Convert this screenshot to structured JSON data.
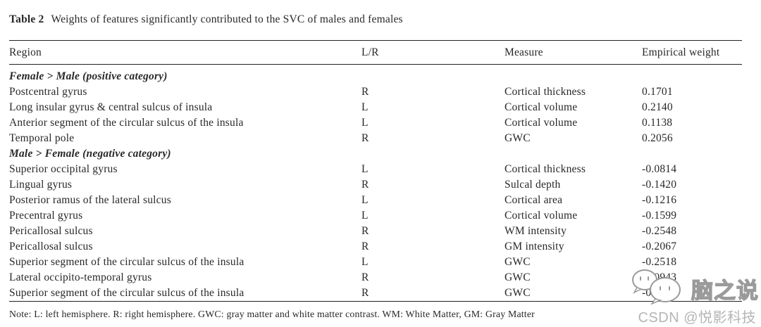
{
  "title": {
    "label": "Table 2",
    "text": "Weights of features significantly contributed to the SVC of males and females"
  },
  "table": {
    "columns": [
      "Region",
      "L/R",
      "Measure",
      "Empirical weight"
    ],
    "rows": [
      {
        "kind": "section",
        "label": "Female > Male (positive category)"
      },
      {
        "kind": "data",
        "region": "Postcentral gyrus",
        "lr": "R",
        "measure": "Cortical thickness",
        "weight": "0.1701"
      },
      {
        "kind": "data",
        "region": "Long insular gyrus & central sulcus of insula",
        "lr": "L",
        "measure": "Cortical volume",
        "weight": "0.2140"
      },
      {
        "kind": "data",
        "region": "Anterior segment of the circular sulcus of the insula",
        "lr": "L",
        "measure": "Cortical volume",
        "weight": "0.1138"
      },
      {
        "kind": "data",
        "region": "Temporal pole",
        "lr": "R",
        "measure": "GWC",
        "weight": "0.2056"
      },
      {
        "kind": "section",
        "label": "Male > Female (negative category)"
      },
      {
        "kind": "data",
        "region": "Superior occipital gyrus",
        "lr": "L",
        "measure": "Cortical thickness",
        "weight": "-0.0814"
      },
      {
        "kind": "data",
        "region": "Lingual gyrus",
        "lr": "R",
        "measure": "Sulcal depth",
        "weight": "-0.1420"
      },
      {
        "kind": "data",
        "region": "Posterior ramus of the lateral sulcus",
        "lr": "L",
        "measure": "Cortical area",
        "weight": "-0.1216"
      },
      {
        "kind": "data",
        "region": "Precentral gyrus",
        "lr": "L",
        "measure": "Cortical volume",
        "weight": "-0.1599"
      },
      {
        "kind": "data",
        "region": "Pericallosal sulcus",
        "lr": "R",
        "measure": "WM intensity",
        "weight": "-0.2548"
      },
      {
        "kind": "data",
        "region": "Pericallosal sulcus",
        "lr": "R",
        "measure": "GM intensity",
        "weight": "-0.2067"
      },
      {
        "kind": "data",
        "region": "Superior segment of the circular sulcus of the insula",
        "lr": "L",
        "measure": "GWC",
        "weight": "-0.2518"
      },
      {
        "kind": "data",
        "region": "Lateral occipito-temporal gyrus",
        "lr": "R",
        "measure": "GWC",
        "weight": "-0.0943"
      },
      {
        "kind": "data",
        "region": "Superior segment of the circular sulcus of the insula",
        "lr": "R",
        "measure": "GWC",
        "weight": "-0.206"
      }
    ]
  },
  "note": "Note: L: left hemisphere. R: right hemisphere. GWC: gray matter and white matter contrast. WM: White Matter, GM: Gray Matter",
  "watermark": {
    "brand": "脑之说",
    "credit": "CSDN @悦影科技"
  },
  "colors": {
    "text": "#282828",
    "rule": "#222222",
    "credit_gray": "#b5b5b5",
    "watermark_outline": "#9a9a9a"
  }
}
